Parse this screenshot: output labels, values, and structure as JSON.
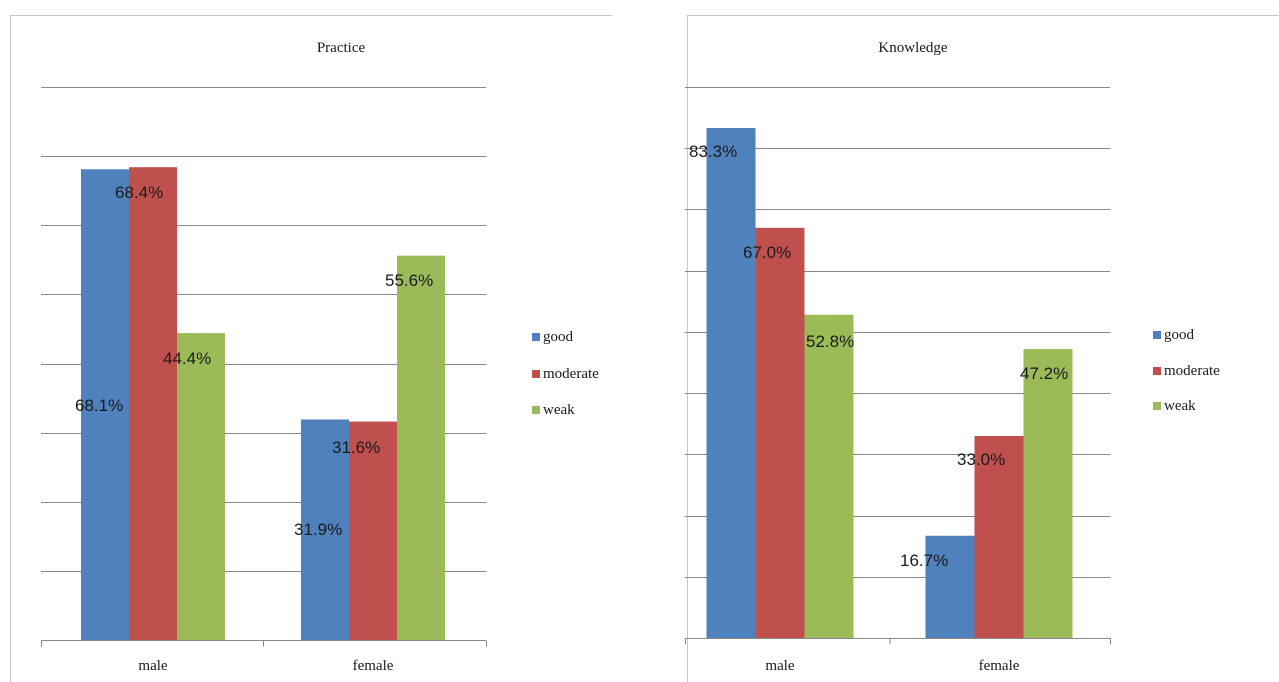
{
  "chart_data": [
    {
      "type": "bar",
      "title": "Practice",
      "categories": [
        "male",
        "female"
      ],
      "series": [
        {
          "name": "good",
          "color": "#4f81bd",
          "values": [
            68.1,
            31.9
          ],
          "labels": [
            "68.1%",
            "31.9%"
          ]
        },
        {
          "name": "moderate",
          "color": "#c0504d",
          "values": [
            68.4,
            31.6
          ],
          "labels": [
            "68.4%",
            "31.6%"
          ]
        },
        {
          "name": "weak",
          "color": "#9bbb59",
          "values": [
            44.4,
            55.6
          ],
          "labels": [
            "44.4%",
            "55.6%"
          ]
        }
      ],
      "ylim": [
        0,
        80
      ],
      "grid": true,
      "legend": "right"
    },
    {
      "type": "bar",
      "title": "Knowledge",
      "categories": [
        "male",
        "female"
      ],
      "series": [
        {
          "name": "good",
          "color": "#4f81bd",
          "values": [
            83.3,
            16.7
          ],
          "labels": [
            "83.3%",
            "16.7%"
          ]
        },
        {
          "name": "moderate",
          "color": "#c0504d",
          "values": [
            67.0,
            33.0
          ],
          "labels": [
            "67.0%",
            "33.0%"
          ]
        },
        {
          "name": "weak",
          "color": "#9bbb59",
          "values": [
            52.8,
            47.2
          ],
          "labels": [
            "52.8%",
            "47.2%"
          ]
        }
      ],
      "ylim": [
        0,
        90
      ],
      "grid": true,
      "legend": "right"
    }
  ]
}
